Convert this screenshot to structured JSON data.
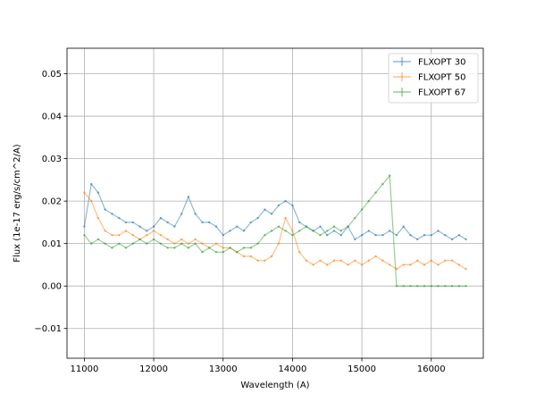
{
  "chart_data": {
    "type": "line",
    "xlabel": "Wavelength (A)",
    "ylabel": "Flux (1e-17 erg/s/cm^2/A)",
    "xlim": [
      10750,
      16750
    ],
    "ylim": [
      -0.017,
      0.056
    ],
    "xticks": [
      11000,
      12000,
      13000,
      14000,
      15000,
      16000
    ],
    "yticks": [
      -0.01,
      0.0,
      0.01,
      0.02,
      0.03,
      0.04,
      0.05
    ],
    "xtick_labels": [
      "11000",
      "12000",
      "13000",
      "14000",
      "15000",
      "16000"
    ],
    "ytick_labels": [
      "−0.01",
      "0.00",
      "0.01",
      "0.02",
      "0.03",
      "0.04",
      "0.05"
    ],
    "grid": true,
    "legend_position": "top-right",
    "series": [
      {
        "name": "FLXOPT 30",
        "color": "#1f77b4",
        "x": [
          11000,
          11100,
          11200,
          11300,
          11400,
          11500,
          11600,
          11700,
          11800,
          11900,
          12000,
          12100,
          12200,
          12300,
          12400,
          12500,
          12600,
          12700,
          12800,
          12900,
          13000,
          13100,
          13200,
          13300,
          13400,
          13500,
          13600,
          13700,
          13800,
          13900,
          14000,
          14100,
          14200,
          14300,
          14400,
          14500,
          14600,
          14700,
          14800,
          14900,
          15000,
          15100,
          15200,
          15300,
          15400,
          15500,
          15600,
          15700,
          15800,
          15900,
          16000,
          16100,
          16200,
          16300,
          16400,
          16500
        ],
        "y": [
          0.014,
          0.024,
          0.022,
          0.018,
          0.017,
          0.016,
          0.015,
          0.015,
          0.014,
          0.013,
          0.014,
          0.016,
          0.015,
          0.014,
          0.017,
          0.021,
          0.017,
          0.015,
          0.015,
          0.014,
          0.012,
          0.013,
          0.014,
          0.013,
          0.015,
          0.016,
          0.018,
          0.017,
          0.019,
          0.02,
          0.019,
          0.015,
          0.014,
          0.013,
          0.014,
          0.012,
          0.013,
          0.012,
          0.014,
          0.011,
          0.012,
          0.013,
          0.012,
          0.012,
          0.013,
          0.012,
          0.014,
          0.012,
          0.011,
          0.012,
          0.012,
          0.013,
          0.012,
          0.011,
          0.012,
          0.011
        ]
      },
      {
        "name": "FLXOPT 50",
        "color": "#ff7f0e",
        "x": [
          11000,
          11100,
          11200,
          11300,
          11400,
          11500,
          11600,
          11700,
          11800,
          11900,
          12000,
          12100,
          12200,
          12300,
          12400,
          12500,
          12600,
          12700,
          12800,
          12900,
          13000,
          13100,
          13200,
          13300,
          13400,
          13500,
          13600,
          13700,
          13800,
          13900,
          14000,
          14100,
          14200,
          14300,
          14400,
          14500,
          14600,
          14700,
          14800,
          14900,
          15000,
          15100,
          15200,
          15300,
          15400,
          15500,
          15600,
          15700,
          15800,
          15900,
          16000,
          16100,
          16200,
          16300,
          16400,
          16500
        ],
        "y": [
          0.022,
          0.02,
          0.016,
          0.013,
          0.012,
          0.012,
          0.013,
          0.012,
          0.011,
          0.012,
          0.013,
          0.012,
          0.011,
          0.01,
          0.011,
          0.01,
          0.011,
          0.01,
          0.009,
          0.01,
          0.009,
          0.009,
          0.008,
          0.007,
          0.007,
          0.006,
          0.006,
          0.007,
          0.01,
          0.016,
          0.013,
          0.008,
          0.006,
          0.005,
          0.006,
          0.005,
          0.006,
          0.006,
          0.005,
          0.006,
          0.005,
          0.006,
          0.007,
          0.006,
          0.005,
          0.004,
          0.005,
          0.005,
          0.006,
          0.005,
          0.006,
          0.005,
          0.006,
          0.006,
          0.005,
          0.004
        ]
      },
      {
        "name": "FLXOPT 67",
        "color": "#2ca02c",
        "x": [
          11000,
          11100,
          11200,
          11300,
          11400,
          11500,
          11600,
          11700,
          11800,
          11900,
          12000,
          12100,
          12200,
          12300,
          12400,
          12500,
          12600,
          12700,
          12800,
          12900,
          13000,
          13100,
          13200,
          13300,
          13400,
          13500,
          13600,
          13700,
          13800,
          13900,
          14000,
          14100,
          14200,
          14300,
          14400,
          14500,
          14600,
          14700,
          14800,
          14900,
          15000,
          15100,
          15200,
          15300,
          15400,
          15500,
          15600,
          15700,
          15800,
          15900,
          16000,
          16100,
          16200,
          16300,
          16400,
          16500
        ],
        "y": [
          0.012,
          0.01,
          0.011,
          0.01,
          0.009,
          0.01,
          0.009,
          0.01,
          0.011,
          0.01,
          0.011,
          0.01,
          0.009,
          0.009,
          0.01,
          0.009,
          0.01,
          0.008,
          0.009,
          0.008,
          0.008,
          0.009,
          0.008,
          0.009,
          0.009,
          0.01,
          0.012,
          0.013,
          0.014,
          0.013,
          0.012,
          0.013,
          0.014,
          0.013,
          0.012,
          0.013,
          0.014,
          0.013,
          0.014,
          0.016,
          0.018,
          0.02,
          0.022,
          0.024,
          0.026,
          0.0,
          0.0,
          0.0,
          0.0,
          0.0,
          0.0,
          0.0,
          0.0,
          0.0,
          0.0,
          0.0
        ]
      }
    ]
  }
}
